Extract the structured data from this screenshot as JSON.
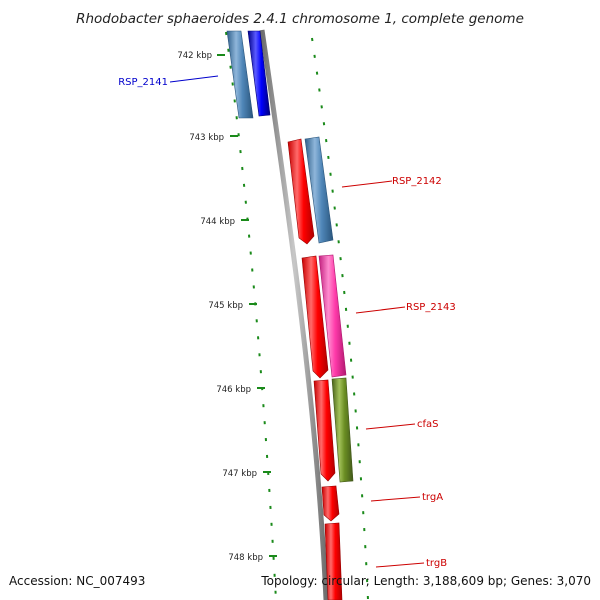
{
  "title": "Rhodobacter sphaeroides 2.4.1 chromosome 1, complete genome",
  "footer": {
    "accession": "Accession: NC_007493",
    "summary": "Topology: circular; Length: 3,188,609 bp; Genes: 3,070"
  },
  "ticks": [
    {
      "kbp": 742,
      "label": "742 kbp"
    },
    {
      "kbp": 743,
      "label": "743 kbp"
    },
    {
      "kbp": 744,
      "label": "744 kbp"
    },
    {
      "kbp": 745,
      "label": "745 kbp"
    },
    {
      "kbp": 746,
      "label": "746 kbp"
    },
    {
      "kbp": 747,
      "label": "747 kbp"
    },
    {
      "kbp": 748,
      "label": "748 kbp"
    }
  ],
  "gene_labels": [
    {
      "name": "RSP_2141",
      "strand": "reverse",
      "color": "#0000cc"
    },
    {
      "name": "RSP_2142",
      "strand": "forward",
      "color": "#cc0000"
    },
    {
      "name": "RSP_2143",
      "strand": "forward",
      "color": "#cc0000"
    },
    {
      "name": "cfaS",
      "strand": "forward",
      "color": "#cc0000"
    },
    {
      "name": "trgA",
      "strand": "forward",
      "color": "#cc0000"
    },
    {
      "name": "trgB",
      "strand": "forward",
      "color": "#cc0000"
    }
  ],
  "colors": {
    "backbone": "#8a8a8a",
    "tick": "#1a8a1a",
    "gene_forward": "#ff0000",
    "gene_reverse": "#0000ff",
    "cds_steelblue": "#4f86b8",
    "cds_magenta": "#ff3aaa",
    "cds_olive": "#6b8e23"
  }
}
